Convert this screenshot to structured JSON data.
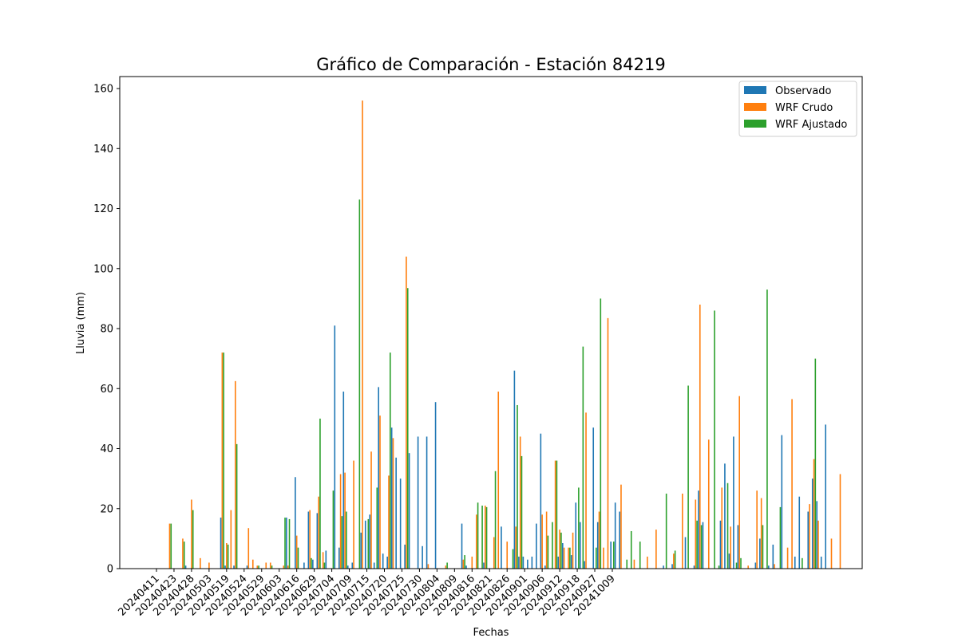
{
  "chart_data": {
    "type": "bar",
    "title": "Gráfico de Comparación - Estación 84219",
    "xlabel": "Fechas",
    "ylabel": "Lluvia (mm)",
    "ylim": [
      0,
      164
    ],
    "yticks": [
      0,
      20,
      40,
      60,
      80,
      100,
      120,
      140,
      160
    ],
    "legend_position": "top-right",
    "grid": false,
    "x_tick_labels": [
      "20240411",
      "20240423",
      "20240428",
      "20240503",
      "20240519",
      "20240524",
      "20240529",
      "20240603",
      "20240616",
      "20240629",
      "20240704",
      "20240709",
      "20240715",
      "20240720",
      "20240725",
      "20240730",
      "20240804",
      "20240809",
      "20240816",
      "20240821",
      "20240826",
      "20240901",
      "20240906",
      "20240912",
      "20240918",
      "20240927",
      "20241009"
    ],
    "x_tick_every": 4,
    "series": [
      {
        "name": "Observado",
        "color": "#1f77b4",
        "values": [
          0,
          0,
          0,
          0,
          0,
          0,
          0,
          1,
          0,
          0,
          0,
          0,
          0,
          0,
          0,
          17,
          1,
          0,
          1,
          0,
          0,
          1,
          0,
          0,
          0,
          0,
          0,
          0,
          0,
          0,
          17,
          0,
          30.5,
          0,
          2,
          19,
          3,
          18.5,
          0,
          6,
          0,
          81,
          7,
          59,
          1,
          2,
          0,
          12,
          16,
          18,
          2,
          60.5,
          5,
          4,
          47,
          37,
          30,
          8,
          38.5,
          0,
          44,
          7.5,
          44,
          0,
          55.5,
          0,
          0,
          0,
          0,
          0,
          15,
          1,
          0,
          0,
          0,
          2,
          0,
          0,
          0,
          14,
          0,
          0,
          66,
          4,
          4,
          3,
          4,
          15,
          45,
          1,
          0,
          0,
          4,
          8.5,
          0,
          4.5,
          22,
          15.5,
          2.5,
          0,
          47,
          15.5,
          0,
          0,
          9,
          22,
          19,
          0,
          0,
          0,
          0,
          0,
          0,
          0,
          0,
          0,
          1,
          0,
          1.5,
          0,
          0,
          10.5,
          0,
          1,
          26,
          15.5,
          0,
          0,
          0,
          16,
          35,
          5,
          44,
          14.5,
          0,
          0,
          0,
          2,
          10,
          0,
          1,
          8,
          0,
          44.5,
          0,
          0,
          4,
          24,
          0,
          19,
          30,
          22.5,
          4,
          48
        ]
      },
      {
        "name": "WRF Crudo",
        "color": "#ff7f0e",
        "values": [
          0,
          0,
          0,
          15,
          0,
          0,
          10,
          0,
          23,
          0,
          3.5,
          0,
          2,
          0,
          0,
          72,
          8.5,
          19.5,
          62.5,
          0,
          0,
          13.5,
          3,
          1,
          0,
          2,
          2,
          0,
          0,
          1,
          1,
          0,
          11,
          0,
          0,
          19.5,
          0,
          24,
          5.5,
          0,
          0,
          0,
          31.5,
          32,
          0,
          36,
          0,
          156,
          0,
          39,
          0,
          51,
          0,
          31,
          43.5,
          0,
          0,
          104,
          0,
          0,
          0,
          0,
          1.5,
          0,
          0,
          0,
          1,
          0,
          0,
          0,
          3,
          0,
          4,
          18,
          0,
          21,
          0,
          10.5,
          59,
          0,
          9,
          0,
          14,
          44,
          0,
          0,
          0,
          0,
          18,
          19,
          0,
          36,
          13,
          7,
          7,
          12,
          0,
          0,
          52,
          0,
          0,
          19,
          7,
          83.5,
          0,
          0,
          28,
          0,
          0,
          3,
          0,
          0,
          4,
          0,
          13,
          0,
          0,
          0,
          5,
          0,
          25,
          0,
          0,
          23,
          88,
          0,
          43,
          0,
          0,
          27,
          0,
          14,
          0,
          57.5,
          0,
          1,
          0,
          26,
          23.5,
          0,
          0,
          1.5,
          0,
          0,
          7,
          56.5,
          0,
          0,
          0,
          21.5,
          36.5,
          16,
          0,
          0,
          10,
          0,
          31.5
        ]
      },
      {
        "name": "WRF Ajustado",
        "color": "#2ca02c",
        "values": [
          0,
          0,
          0,
          15,
          0,
          0,
          9,
          0,
          19.5,
          0,
          0,
          0,
          0,
          0,
          0,
          72,
          8,
          0,
          41.5,
          0,
          0,
          0,
          0,
          1,
          0,
          0,
          1,
          0,
          0,
          17,
          16.5,
          0,
          7,
          0,
          0,
          3.5,
          0,
          50,
          2,
          0,
          26,
          0,
          17.5,
          19,
          0,
          0,
          123,
          0,
          16.5,
          0,
          27,
          0,
          0,
          72,
          0,
          0,
          0,
          93.5,
          0,
          0,
          0,
          0,
          0,
          0,
          0,
          0,
          2,
          0,
          0,
          0,
          4.5,
          0,
          0,
          22,
          21,
          20.5,
          0,
          32.5,
          0,
          0,
          0,
          6.5,
          54.5,
          37.5,
          0,
          0,
          0,
          0,
          0,
          11,
          15.5,
          36,
          12,
          0,
          7,
          0,
          27,
          74,
          0,
          0,
          7,
          90,
          0,
          0,
          9,
          0,
          0,
          3,
          12.5,
          0,
          9,
          0,
          0,
          0,
          0,
          0,
          25,
          0,
          6,
          0,
          0,
          61,
          0,
          16,
          14.5,
          0,
          0,
          86,
          1,
          0,
          28.5,
          0,
          2,
          3.5,
          0,
          0,
          0,
          0,
          14.5,
          93,
          0,
          0,
          20.5,
          0,
          0,
          0,
          0,
          3.5,
          0,
          0,
          70
        ]
      }
    ]
  }
}
